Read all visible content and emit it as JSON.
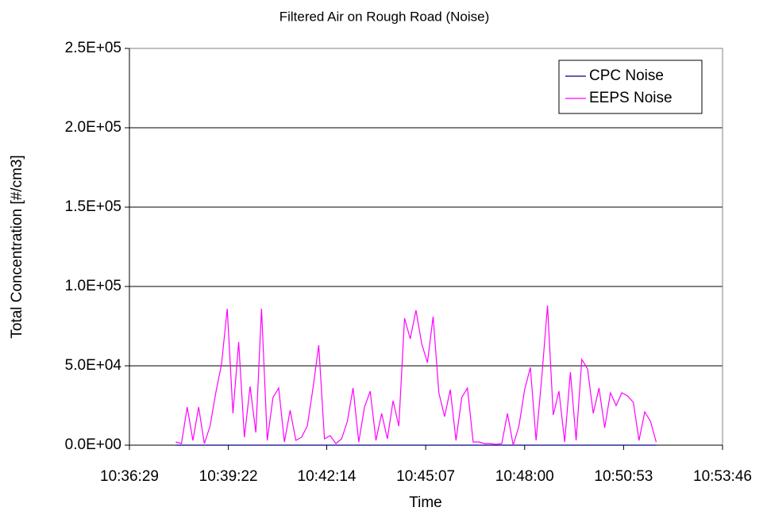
{
  "chart_data": {
    "type": "line",
    "title": "Filtered Air on Rough Road (Noise)",
    "x_label": "Time",
    "y_label": "Total Concentration [#/cm3]",
    "x": [
      "10:37:50",
      "10:38:00",
      "10:38:10",
      "10:38:20",
      "10:38:30",
      "10:38:40",
      "10:38:50",
      "10:39:00",
      "10:39:10",
      "10:39:20",
      "10:39:30",
      "10:39:40",
      "10:39:50",
      "10:40:00",
      "10:40:10",
      "10:40:20",
      "10:40:30",
      "10:40:40",
      "10:40:50",
      "10:41:00",
      "10:41:10",
      "10:41:20",
      "10:41:30",
      "10:41:40",
      "10:41:50",
      "10:42:00",
      "10:42:10",
      "10:42:20",
      "10:42:30",
      "10:42:40",
      "10:42:50",
      "10:43:00",
      "10:43:10",
      "10:43:20",
      "10:43:30",
      "10:43:40",
      "10:43:50",
      "10:44:00",
      "10:44:10",
      "10:44:20",
      "10:44:30",
      "10:44:40",
      "10:44:50",
      "10:45:00",
      "10:45:10",
      "10:45:20",
      "10:45:30",
      "10:45:40",
      "10:45:50",
      "10:46:00",
      "10:46:10",
      "10:46:20",
      "10:46:30",
      "10:46:40",
      "10:46:50",
      "10:47:00",
      "10:47:10",
      "10:47:20",
      "10:47:30",
      "10:47:40",
      "10:47:50",
      "10:48:00",
      "10:48:10",
      "10:48:20",
      "10:48:30",
      "10:48:40",
      "10:48:50",
      "10:49:00",
      "10:49:10",
      "10:49:20",
      "10:49:30",
      "10:49:40",
      "10:49:50",
      "10:50:00",
      "10:50:10",
      "10:50:20",
      "10:50:30",
      "10:50:40",
      "10:50:50",
      "10:51:00",
      "10:51:10",
      "10:51:20",
      "10:51:30",
      "10:51:40",
      "10:51:50"
    ],
    "series": [
      {
        "name": "CPC Noise",
        "color": "#000080",
        "values": [
          0,
          0,
          0,
          0,
          0,
          0,
          0,
          0,
          0,
          0,
          0,
          0,
          0,
          0,
          0,
          0,
          0,
          0,
          0,
          0,
          0,
          0,
          0,
          0,
          0,
          0,
          0,
          0,
          0,
          0,
          0,
          0,
          0,
          0,
          0,
          0,
          0,
          0,
          0,
          0,
          0,
          0,
          0,
          0,
          0,
          0,
          0,
          0,
          0,
          0,
          0,
          0,
          0,
          0,
          0,
          0,
          0,
          0,
          0,
          0,
          0,
          0,
          0,
          0,
          0,
          0,
          0,
          0,
          0,
          0,
          0,
          0,
          0,
          0,
          0,
          0,
          0,
          0,
          0,
          0,
          0,
          0,
          0,
          0,
          0
        ]
      },
      {
        "name": "EEPS Noise",
        "color": "#ff00ff",
        "values": [
          2000,
          1000,
          24000,
          3000,
          24000,
          1000,
          12000,
          33000,
          51000,
          86000,
          20000,
          65000,
          5000,
          37000,
          8000,
          86000,
          3000,
          30000,
          36000,
          2000,
          22000,
          3000,
          5000,
          12000,
          36000,
          63000,
          4000,
          6000,
          1000,
          4000,
          15000,
          36000,
          2000,
          24000,
          34000,
          3000,
          20000,
          4000,
          28000,
          12000,
          80000,
          67000,
          85000,
          64000,
          52000,
          81000,
          33000,
          18000,
          35000,
          3000,
          30000,
          36000,
          2000,
          2000,
          1000,
          1000,
          500,
          1000,
          20000,
          0,
          12000,
          35000,
          49000,
          3000,
          43000,
          88000,
          19000,
          34000,
          2000,
          46000,
          3000,
          54000,
          48000,
          20000,
          36000,
          11000,
          33000,
          25000,
          33000,
          31000,
          27000,
          3000,
          21000,
          15000,
          2000
        ]
      }
    ],
    "xlim": [
      "10:36:29",
      "10:53:46"
    ],
    "xticks": [
      "10:36:29",
      "10:39:22",
      "10:42:14",
      "10:45:07",
      "10:48:00",
      "10:50:53",
      "10:53:46"
    ],
    "ylim": [
      0,
      250000
    ],
    "yticks": [
      {
        "value": 0,
        "label": "0.0E+00"
      },
      {
        "value": 50000,
        "label": "5.0E+04"
      },
      {
        "value": 100000,
        "label": "1.0E+05"
      },
      {
        "value": 150000,
        "label": "1.5E+05"
      },
      {
        "value": 200000,
        "label": "2.0E+05"
      },
      {
        "value": 250000,
        "label": "2.5E+05"
      }
    ],
    "grid": true,
    "legend": "upper right"
  }
}
